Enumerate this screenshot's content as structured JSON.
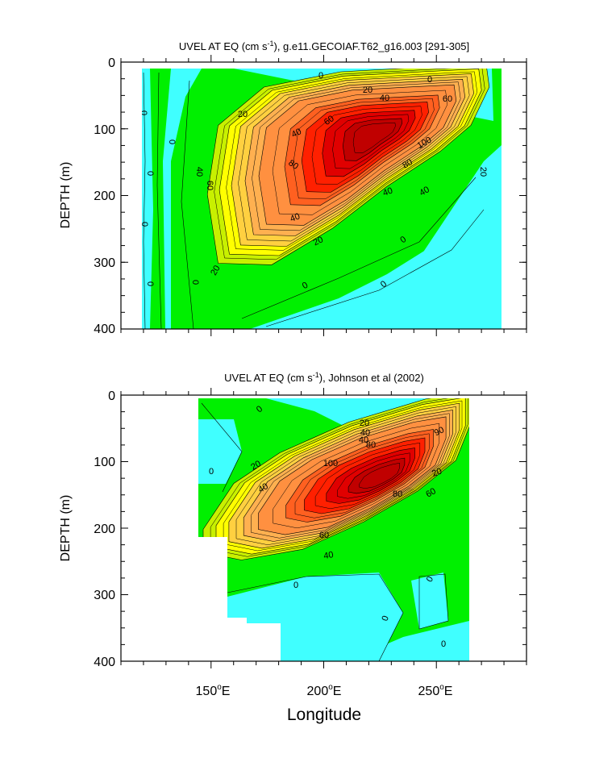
{
  "chart_data": [
    {
      "type": "contour",
      "title": "UVEL AT EQ (cm s",
      "title_sup": "-1",
      "title_tail": "), g.e11.GECOIAF.T62_g16.003 [291-305]",
      "ylabel": "DEPTH (m)",
      "ylim": [
        400,
        0
      ],
      "yticks": [
        "0",
        "100",
        "200",
        "300",
        "400"
      ],
      "xlim": [
        110,
        290
      ],
      "contour_interval": 10,
      "color_scale": [
        "#40ffff",
        "#00f000",
        "#c8f000",
        "#ffff00",
        "#ffd040",
        "#ffb050",
        "#ff9040",
        "#ff6020",
        "#ff2000",
        "#e00000",
        "#c00000"
      ],
      "contour_labels": [
        "0",
        "0",
        "0",
        "0",
        "0",
        "0",
        "0",
        "0",
        "0",
        "0",
        "0",
        "20",
        "20",
        "20",
        "20",
        "20",
        "40",
        "40",
        "40",
        "40",
        "40",
        "40",
        "60",
        "60",
        "60",
        "80",
        "80",
        "100"
      ],
      "core": {
        "max_speed": 110,
        "longitude": 228,
        "depth": 115
      },
      "data_extent": {
        "lon": [
          117,
          279
        ],
        "depth": [
          10,
          400
        ]
      }
    },
    {
      "type": "contour",
      "title": "UVEL AT EQ (cm s",
      "title_sup": "-1",
      "title_tail": "), Johnson et al (2002)",
      "ylabel": "DEPTH (m)",
      "ylim": [
        400,
        0
      ],
      "yticks": [
        "0",
        "100",
        "200",
        "300",
        "400"
      ],
      "xlim": [
        110,
        290
      ],
      "xticks": [
        "150",
        "200",
        "250"
      ],
      "xtick_suffix": "E",
      "xlabel": "Longitude",
      "contour_interval": 10,
      "color_scale": [
        "#40ffff",
        "#00f000",
        "#c8f000",
        "#ffff00",
        "#ffd040",
        "#ffb050",
        "#ff9040",
        "#ff6020",
        "#ff2000",
        "#e00000",
        "#c00000"
      ],
      "contour_labels": [
        "0",
        "0",
        "0",
        "0",
        "0",
        "0",
        "20",
        "20",
        "20",
        "40",
        "40",
        "40",
        "40",
        "60",
        "60",
        "80",
        "80",
        "90",
        "100"
      ],
      "core": {
        "max_speed": 110,
        "longitude": 233,
        "depth": 105
      },
      "data_extent": {
        "lon": [
          143,
          265
        ],
        "depth": [
          10,
          400
        ]
      }
    }
  ]
}
